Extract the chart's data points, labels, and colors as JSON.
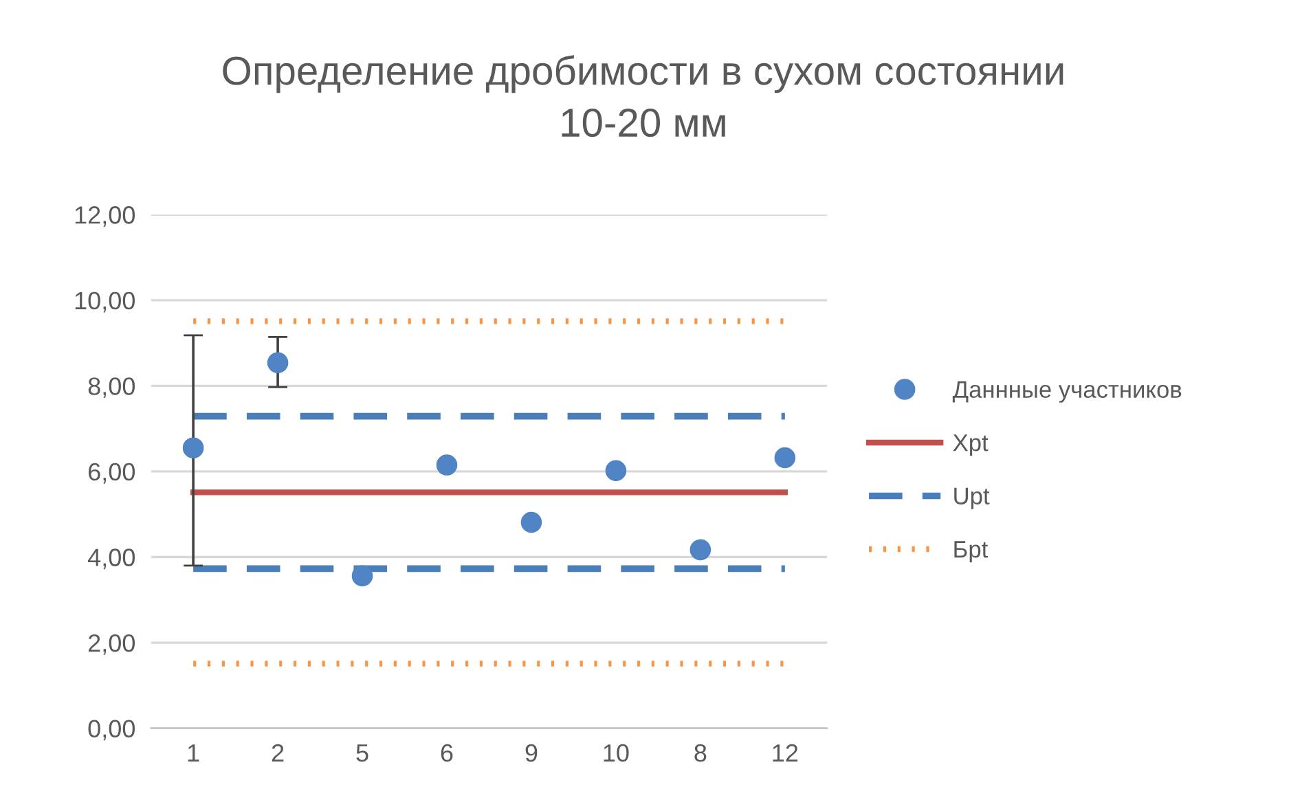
{
  "chart_data": {
    "type": "scatter",
    "title": "Определение дробимости в сухом состоянии\n10-20 мм",
    "categories": [
      "1",
      "2",
      "5",
      "6",
      "9",
      "10",
      "8",
      "12"
    ],
    "series": [
      {
        "name": "Даннные участников",
        "color": "#5084c4",
        "marker": "circle",
        "values": [
          6.55,
          8.54,
          3.56,
          6.15,
          4.81,
          6.02,
          4.17,
          6.32
        ],
        "errors": [
          [
            3.8,
            9.18
          ],
          [
            7.97,
            9.14
          ],
          null,
          null,
          null,
          null,
          null,
          null
        ]
      },
      {
        "name": "Xpt",
        "type": "line",
        "color": "#c0504d",
        "line_style": "solid",
        "values": [
          5.51,
          5.51,
          5.51,
          5.51,
          5.51,
          5.51,
          5.51,
          5.51
        ]
      },
      {
        "name": "Upt",
        "type": "line",
        "color": "#4a7ebb",
        "line_style": "dashed",
        "values": [
          7.29,
          7.29,
          7.29,
          7.29,
          7.29,
          7.29,
          7.29,
          7.29
        ]
      },
      {
        "type": "line",
        "color": "#4a7ebb",
        "line_style": "dashed",
        "values": [
          3.73,
          3.73,
          3.73,
          3.73,
          3.73,
          3.73,
          3.73,
          3.73
        ]
      },
      {
        "name": "Бpt",
        "type": "line",
        "color": "#f79646",
        "line_style": "dotted",
        "values": [
          9.51,
          9.51,
          9.51,
          9.51,
          9.51,
          9.51,
          9.51,
          9.51
        ]
      },
      {
        "type": "line",
        "color": "#f79646",
        "line_style": "dotted",
        "values": [
          1.51,
          1.51,
          1.51,
          1.51,
          1.51,
          1.51,
          1.51,
          1.51
        ]
      }
    ],
    "ylim": [
      0,
      12
    ],
    "yticks": [
      {
        "value": 0,
        "label": "0,00"
      },
      {
        "value": 2,
        "label": "2,00"
      },
      {
        "value": 4,
        "label": "4,00"
      },
      {
        "value": 6,
        "label": "6,00"
      },
      {
        "value": 8,
        "label": "8,00"
      },
      {
        "value": 10,
        "label": "10,00"
      },
      {
        "value": 12,
        "label": "12,00"
      }
    ],
    "grid": "y",
    "legend": "right"
  }
}
